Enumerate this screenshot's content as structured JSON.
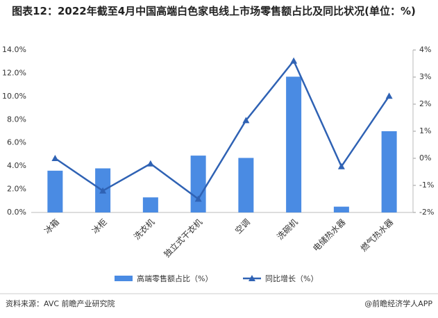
{
  "chart_data": {
    "type": "bar",
    "title": "图表12：2022年截至4月中国高端白色家电线上市场零售额占比及同比状况(单位：%)",
    "categories": [
      "冰箱",
      "冰柜",
      "洗衣机",
      "独立式干衣机",
      "空调",
      "洗碗机",
      "电储热水器",
      "燃气热水器"
    ],
    "series": [
      {
        "name": "高端零售额占比（%）",
        "type": "bar",
        "color": "#4a8be3",
        "values": [
          3.6,
          3.8,
          1.3,
          4.9,
          4.7,
          11.7,
          0.5,
          7.0
        ]
      },
      {
        "name": "同比增长（%）",
        "type": "line",
        "axis": "y2",
        "color": "#2f62b4",
        "values": [
          0.0,
          -1.2,
          -0.2,
          -1.5,
          1.4,
          3.6,
          -0.3,
          2.3
        ]
      }
    ],
    "ylim": [
      0,
      14
    ],
    "yticks": [
      {
        "value": 0,
        "label": "0.0%"
      },
      {
        "value": 2,
        "label": "2.0%"
      },
      {
        "value": 4,
        "label": "4.0%"
      },
      {
        "value": 6,
        "label": "6.0%"
      },
      {
        "value": 8,
        "label": "8.0%"
      },
      {
        "value": 10,
        "label": "10.0%"
      },
      {
        "value": 12,
        "label": "12.0%"
      },
      {
        "value": 14,
        "label": "14.0%"
      }
    ],
    "y2lim": [
      -2,
      4
    ],
    "y2ticks": [
      {
        "value": -2,
        "label": "-2%"
      },
      {
        "value": -1,
        "label": "-1%"
      },
      {
        "value": 0,
        "label": "0%"
      },
      {
        "value": 1,
        "label": "1%"
      },
      {
        "value": 2,
        "label": "2%"
      },
      {
        "value": 3,
        "label": "3%"
      },
      {
        "value": 4,
        "label": "4%"
      }
    ],
    "grid": false,
    "legend": "bottom",
    "source": "资料来源：AVC 前瞻产业研究院",
    "credit": "@前瞻经济学人APP"
  }
}
